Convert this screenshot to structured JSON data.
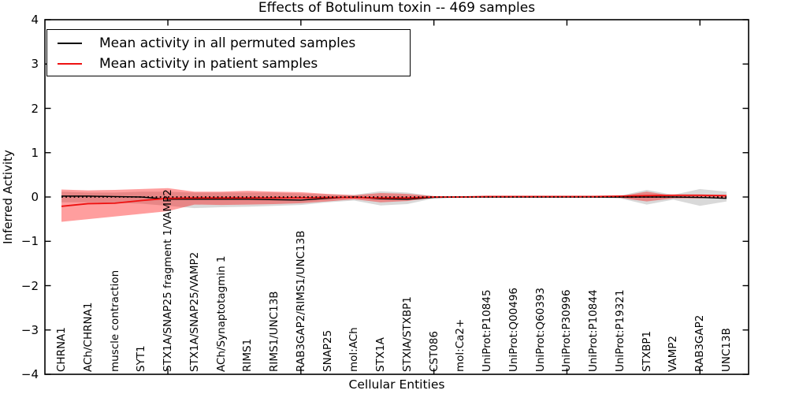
{
  "figure": {
    "title": "Effects of Botulinum toxin -- 469 samples",
    "xlabel": "Cellular Entities",
    "ylabel": "Inferred Activity"
  },
  "chart_data": {
    "type": "line",
    "title": "Effects of Botulinum toxin -- 469 samples",
    "xlabel": "Cellular Entities",
    "ylabel": "Inferred Activity",
    "ylim": [
      -4,
      4
    ],
    "grid": false,
    "legend_position": "upper left",
    "ytick_values": [
      4,
      3,
      2,
      1,
      0,
      -1,
      -2,
      -3,
      -4
    ],
    "ytick_labels": [
      "4",
      "3",
      "2",
      "1",
      "0",
      "−1",
      "−2",
      "−3",
      "−4"
    ],
    "xtick_indices": [
      4,
      9,
      14,
      19,
      24
    ],
    "categories": [
      "CHRNA1",
      "ACh/CHRNA1",
      "muscle contraction",
      "SYT1",
      "STX1A/SNAP25 fragment 1/VAMP2",
      "STX1A/SNAP25/VAMP2",
      "ACh/Synaptotagmin 1",
      "RIMS1",
      "RIMS1/UNC13B",
      "RAB3GAP2/RIMS1/UNC13B",
      "SNAP25",
      "mol:ACh",
      "STX1A",
      "STXIA/STXBP1",
      "CST086",
      "mol:Ca2+",
      "UniProt:P10845",
      "UniProt:Q00496",
      "UniProt:Q60393",
      "UniProt:P30996",
      "UniProt:P10844",
      "UniProt:P19321",
      "STXBP1",
      "VAMP2",
      "RAB3GAP2",
      "UNC13B"
    ],
    "zero_line": {
      "value": 0,
      "style": "dotted",
      "color": "#000000"
    },
    "series": [
      {
        "name": "Mean activity in all permuted samples",
        "color": "#000000",
        "line_width": 1.4,
        "values": [
          0.02,
          0.02,
          0.01,
          0.0,
          -0.05,
          -0.05,
          -0.05,
          -0.05,
          -0.06,
          -0.07,
          -0.03,
          0.0,
          -0.04,
          -0.05,
          -0.01,
          0.0,
          0.0,
          0.0,
          0.0,
          0.0,
          0.0,
          0.0,
          0.0,
          0.0,
          -0.01,
          -0.03
        ]
      },
      {
        "name": "Mean activity in patient samples",
        "color": "#ee1111",
        "line_width": 1.8,
        "values": [
          -0.21,
          -0.15,
          -0.14,
          -0.08,
          -0.03,
          -0.02,
          -0.02,
          -0.02,
          -0.02,
          -0.02,
          -0.01,
          -0.01,
          -0.02,
          -0.02,
          0.0,
          0.0,
          0.01,
          0.01,
          0.01,
          0.01,
          0.01,
          0.02,
          0.03,
          0.04,
          0.04,
          0.03
        ]
      }
    ],
    "bands": [
      {
        "name": "permuted samples spread",
        "color": "#000000",
        "opacity": 0.15,
        "hi": [
          0.12,
          0.1,
          0.1,
          0.12,
          0.12,
          0.1,
          0.1,
          0.1,
          0.1,
          0.08,
          0.06,
          0.05,
          0.13,
          0.1,
          0.02,
          0.02,
          0.02,
          0.02,
          0.02,
          0.02,
          0.02,
          0.03,
          0.16,
          0.05,
          0.18,
          0.12
        ],
        "lo": [
          -0.12,
          -0.12,
          -0.13,
          -0.15,
          -0.2,
          -0.25,
          -0.23,
          -0.22,
          -0.2,
          -0.18,
          -0.12,
          -0.08,
          -0.19,
          -0.16,
          -0.03,
          -0.02,
          -0.02,
          -0.02,
          -0.02,
          -0.02,
          -0.02,
          -0.03,
          -0.17,
          -0.06,
          -0.2,
          -0.1
        ]
      },
      {
        "name": "patient samples spread",
        "color": "#ff0000",
        "opacity": 0.38,
        "hi": [
          0.17,
          0.15,
          0.16,
          0.18,
          0.2,
          0.12,
          0.12,
          0.14,
          0.12,
          0.11,
          0.07,
          0.04,
          0.09,
          0.07,
          0.02,
          0.01,
          0.01,
          0.01,
          0.01,
          0.01,
          0.01,
          0.02,
          0.12,
          0.03,
          0.03,
          0.02
        ],
        "lo": [
          -0.56,
          -0.5,
          -0.44,
          -0.38,
          -0.32,
          -0.17,
          -0.18,
          -0.17,
          -0.16,
          -0.14,
          -0.1,
          -0.05,
          -0.12,
          -0.09,
          -0.02,
          -0.01,
          -0.01,
          -0.01,
          -0.01,
          -0.01,
          -0.01,
          -0.02,
          -0.1,
          -0.03,
          -0.03,
          -0.02
        ]
      }
    ]
  },
  "legend": {
    "items": [
      {
        "label": "Mean activity in all permuted samples",
        "color": "#000000"
      },
      {
        "label": "Mean activity in patient samples",
        "color": "#ee1111"
      }
    ]
  }
}
